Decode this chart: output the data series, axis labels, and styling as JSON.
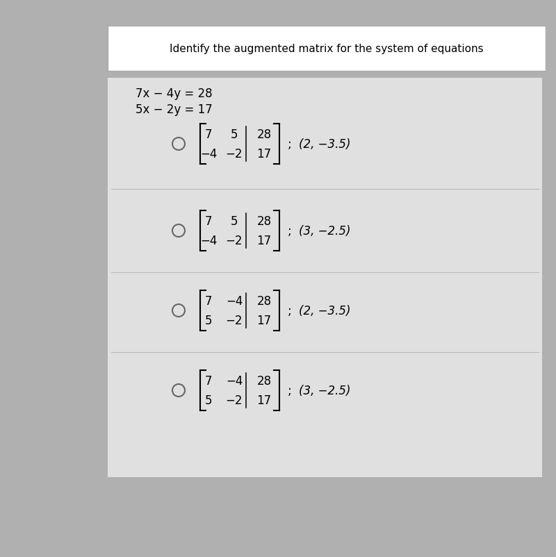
{
  "outer_bg": "#b0b0b0",
  "panel_bg": "#d8d8d8",
  "inner_panel_bg": "#e0e0e0",
  "footer_bg": "#ffffff",
  "equations": [
    "7x − 4y = 28",
    "5x − 2y = 17"
  ],
  "options": [
    {
      "matrix_rows": [
        [
          "7",
          "5",
          "28"
        ],
        [
          "−4",
          "−2",
          "17"
        ]
      ],
      "solution": "(2, −3.5)"
    },
    {
      "matrix_rows": [
        [
          "7",
          "5",
          "28"
        ],
        [
          "−4",
          "−2",
          "17"
        ]
      ],
      "solution": "(3, −2.5)"
    },
    {
      "matrix_rows": [
        [
          "7",
          "−4",
          "28"
        ],
        [
          "5",
          "−2",
          "17"
        ]
      ],
      "solution": "(2, −3.5)"
    },
    {
      "matrix_rows": [
        [
          "7",
          "−4",
          "28"
        ],
        [
          "5",
          "−2",
          "17"
        ]
      ],
      "solution": "(3, −2.5)"
    }
  ],
  "footer_text": "Identify the augmented matrix for the system of equations",
  "fig_width": 8.0,
  "fig_height": 8.03,
  "font_size_eq": 12,
  "font_size_matrix": 12,
  "font_size_solution": 12,
  "font_size_footer": 11,
  "font_size_circle": 10
}
